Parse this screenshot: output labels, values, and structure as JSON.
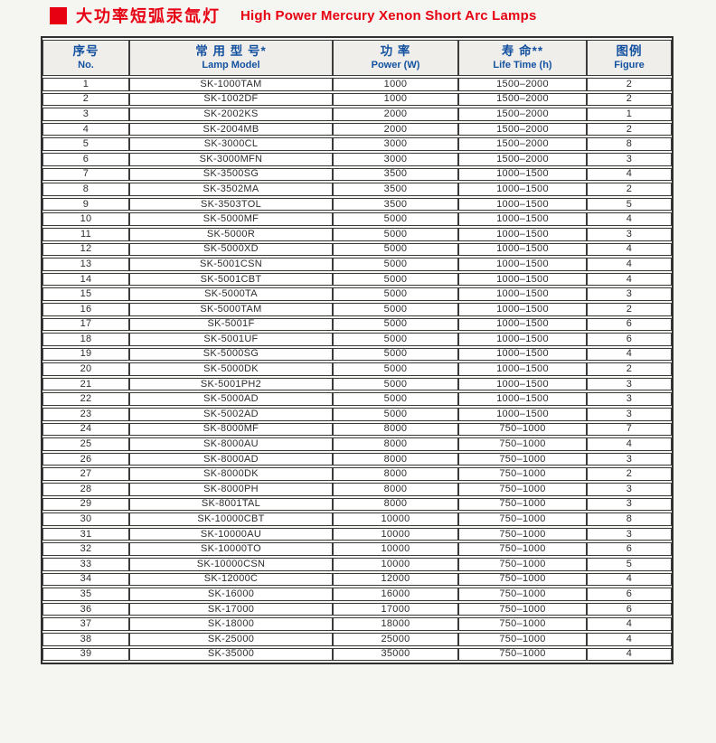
{
  "page": {
    "title_cn": "大功率短弧汞氙灯",
    "title_en": "High Power Mercury Xenon Short Arc Lamps",
    "accent_red": "#e60012",
    "header_blue": "#1452a0"
  },
  "table": {
    "columns": [
      {
        "cn": "序号",
        "en": "No."
      },
      {
        "cn": "常 用 型 号*",
        "en": "Lamp Model"
      },
      {
        "cn": "功 率",
        "en": "Power (W)"
      },
      {
        "cn": "寿 命**",
        "en": "Life Time (h)"
      },
      {
        "cn": "图例",
        "en": "Figure"
      }
    ],
    "rows": [
      [
        "1",
        "SK-1000TAM",
        "1000",
        "1500–2000",
        "2"
      ],
      [
        "2",
        "SK-1002DF",
        "1000",
        "1500–2000",
        "2"
      ],
      [
        "3",
        "SK-2002KS",
        "2000",
        "1500–2000",
        "1"
      ],
      [
        "4",
        "SK-2004MB",
        "2000",
        "1500–2000",
        "2"
      ],
      [
        "5",
        "SK-3000CL",
        "3000",
        "1500–2000",
        "8"
      ],
      [
        "6",
        "SK-3000MFN",
        "3000",
        "1500–2000",
        "3"
      ],
      [
        "7",
        "SK-3500SG",
        "3500",
        "1000–1500",
        "4"
      ],
      [
        "8",
        "SK-3502MA",
        "3500",
        "1000–1500",
        "2"
      ],
      [
        "9",
        "SK-3503TOL",
        "3500",
        "1000–1500",
        "5"
      ],
      [
        "10",
        "SK-5000MF",
        "5000",
        "1000–1500",
        "4"
      ],
      [
        "11",
        "SK-5000R",
        "5000",
        "1000–1500",
        "3"
      ],
      [
        "12",
        "SK-5000XD",
        "5000",
        "1000–1500",
        "4"
      ],
      [
        "13",
        "SK-5001CSN",
        "5000",
        "1000–1500",
        "4"
      ],
      [
        "14",
        "SK-5001CBT",
        "5000",
        "1000–1500",
        "4"
      ],
      [
        "15",
        "SK-5000TA",
        "5000",
        "1000–1500",
        "3"
      ],
      [
        "16",
        "SK-5000TAM",
        "5000",
        "1000–1500",
        "2"
      ],
      [
        "17",
        "SK-5001F",
        "5000",
        "1000–1500",
        "6"
      ],
      [
        "18",
        "SK-5001UF",
        "5000",
        "1000–1500",
        "6"
      ],
      [
        "19",
        "SK-5000SG",
        "5000",
        "1000–1500",
        "4"
      ],
      [
        "20",
        "SK-5000DK",
        "5000",
        "1000–1500",
        "2"
      ],
      [
        "21",
        "SK-5001PH2",
        "5000",
        "1000–1500",
        "3"
      ],
      [
        "22",
        "SK-5000AD",
        "5000",
        "1000–1500",
        "3"
      ],
      [
        "23",
        "SK-5002AD",
        "5000",
        "1000–1500",
        "3"
      ],
      [
        "24",
        "SK-8000MF",
        "8000",
        "750–1000",
        "7"
      ],
      [
        "25",
        "SK-8000AU",
        "8000",
        "750–1000",
        "4"
      ],
      [
        "26",
        "SK-8000AD",
        "8000",
        "750–1000",
        "3"
      ],
      [
        "27",
        "SK-8000DK",
        "8000",
        "750–1000",
        "2"
      ],
      [
        "28",
        "SK-8000PH",
        "8000",
        "750–1000",
        "3"
      ],
      [
        "29",
        "SK-8001TAL",
        "8000",
        "750–1000",
        "3"
      ],
      [
        "30",
        "SK-10000CBT",
        "10000",
        "750–1000",
        "8"
      ],
      [
        "31",
        "SK-10000AU",
        "10000",
        "750–1000",
        "3"
      ],
      [
        "32",
        "SK-10000TO",
        "10000",
        "750–1000",
        "6"
      ],
      [
        "33",
        "SK-10000CSN",
        "10000",
        "750–1000",
        "5"
      ],
      [
        "34",
        "SK-12000C",
        "12000",
        "750–1000",
        "4"
      ],
      [
        "35",
        "SK-16000",
        "16000",
        "750–1000",
        "6"
      ],
      [
        "36",
        "SK-17000",
        "17000",
        "750–1000",
        "6"
      ],
      [
        "37",
        "SK-18000",
        "18000",
        "750–1000",
        "4"
      ],
      [
        "38",
        "SK-25000",
        "25000",
        "750–1000",
        "4"
      ],
      [
        "39",
        "SK-35000",
        "35000",
        "750–1000",
        "4"
      ]
    ]
  }
}
